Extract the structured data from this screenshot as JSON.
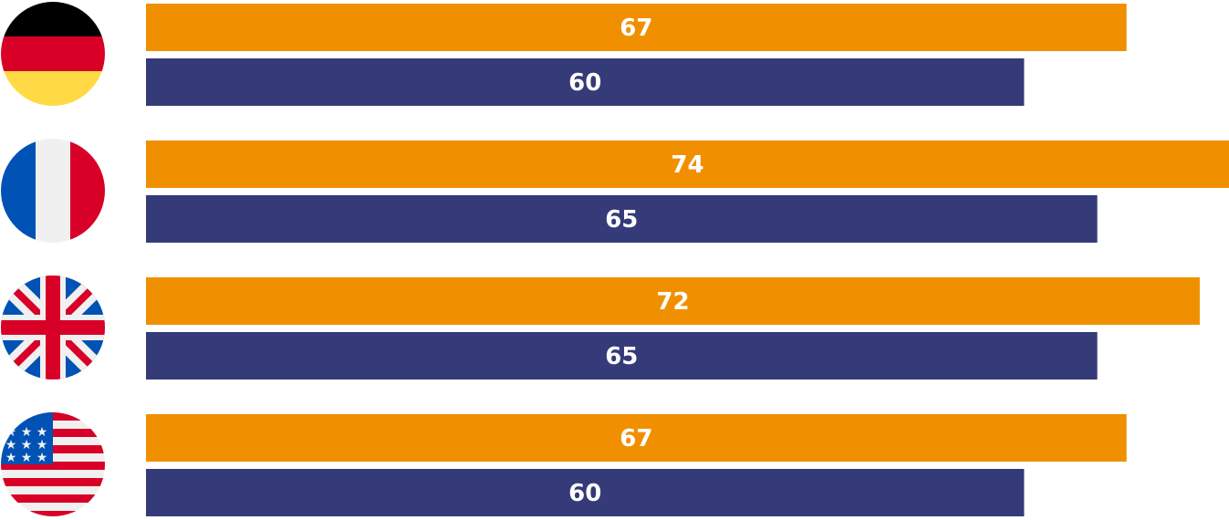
{
  "chart_data": {
    "type": "bar",
    "orientation": "horizontal",
    "categories": [
      "Germany",
      "France",
      "United Kingdom",
      "United States"
    ],
    "category_icons": [
      "germany-flag-icon",
      "france-flag-icon",
      "uk-flag-icon",
      "usa-flag-icon"
    ],
    "series": [
      {
        "color": "#F09000",
        "values": [
          67,
          74,
          72,
          67
        ]
      },
      {
        "color": "#343B78",
        "values": [
          60,
          65,
          65,
          60
        ]
      }
    ],
    "xlim": [
      0,
      74
    ],
    "grid": false,
    "legend": "none",
    "data_labels": "centered-in-bar"
  }
}
